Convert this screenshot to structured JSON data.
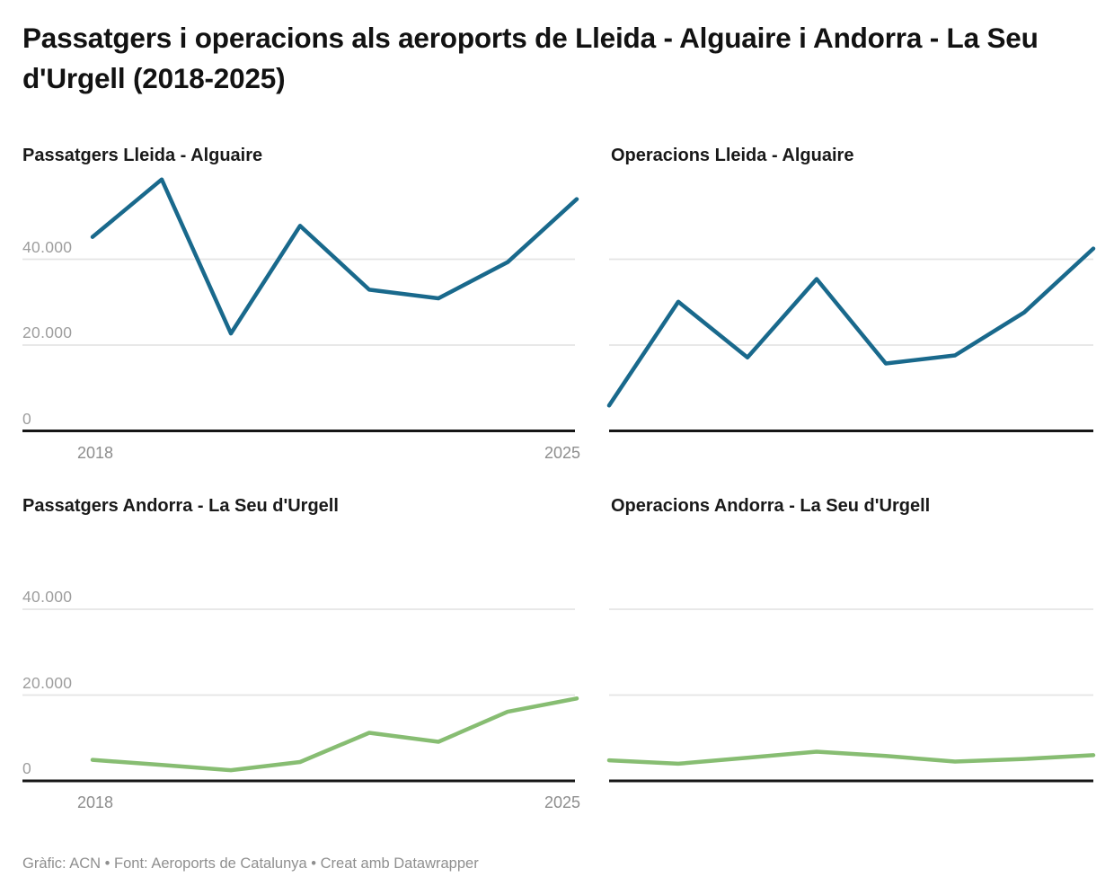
{
  "header": {
    "title": "Passatgers i operacions als aeroports de Lleida - Alguaire i Andorra - La Seu d'Urgell (2018-2025)"
  },
  "axis": {
    "x_first_label": "2018",
    "x_last_label": "2025",
    "y_ticks": [
      "40.000",
      "20.000",
      "0"
    ]
  },
  "footer": {
    "text": "Gràfic: ACN • Font: Aeroports de Catalunya • Creat amb Datawrapper"
  },
  "colors": {
    "teal": "#19698c",
    "green": "#87bd72",
    "gridline": "#e4e4e4",
    "baseline": "#161616",
    "tick_text": "#9d9d9d",
    "title_text": "#121212",
    "footer_text": "#8f8f8f",
    "background": "#ffffff"
  },
  "chart_data": [
    {
      "type": "line",
      "title": "Passatgers Lleida - Alguaire",
      "color": "teal",
      "x": [
        2018,
        2019,
        2020,
        2021,
        2022,
        2023,
        2024,
        2025
      ],
      "values": [
        45200,
        58600,
        22700,
        47800,
        32900,
        30900,
        39300,
        54000
      ],
      "ylim": [
        0,
        60000
      ],
      "y_gridlines": [
        20000,
        40000
      ],
      "y_axis_labels": [
        "40.000",
        "20.000",
        "0"
      ],
      "x_axis_labels": [
        "2018",
        "2025"
      ],
      "grid": "on",
      "legend": "none"
    },
    {
      "type": "line",
      "title": "Operacions Lleida - Alguaire",
      "color": "teal",
      "x": [
        2018,
        2019,
        2020,
        2021,
        2022,
        2023,
        2024,
        2025
      ],
      "values": [
        5900,
        30100,
        17100,
        35400,
        15700,
        17600,
        27600,
        42500
      ],
      "ylim": [
        0,
        60000
      ],
      "y_gridlines": [
        20000,
        40000
      ],
      "y_axis_labels": [],
      "x_axis_labels": [],
      "grid": "on",
      "legend": "none"
    },
    {
      "type": "line",
      "title": "Passatgers Andorra - La Seu d'Urgell",
      "color": "green",
      "x": [
        2018,
        2019,
        2020,
        2021,
        2022,
        2023,
        2024,
        2025
      ],
      "values": [
        4900,
        3700,
        2500,
        4400,
        11200,
        9100,
        16100,
        19200
      ],
      "ylim": [
        0,
        60000
      ],
      "y_gridlines": [
        20000,
        40000
      ],
      "y_axis_labels": [
        "40.000",
        "20.000",
        "0"
      ],
      "x_axis_labels": [
        "2018",
        "2025"
      ],
      "grid": "on",
      "legend": "none"
    },
    {
      "type": "line",
      "title": "Operacions Andorra - La Seu d'Urgell",
      "color": "green",
      "x": [
        2018,
        2019,
        2020,
        2021,
        2022,
        2023,
        2024,
        2025
      ],
      "values": [
        4800,
        4000,
        5400,
        6800,
        5800,
        4500,
        5100,
        6000
      ],
      "ylim": [
        0,
        60000
      ],
      "y_gridlines": [
        20000,
        40000
      ],
      "y_axis_labels": [],
      "x_axis_labels": [],
      "grid": "on",
      "legend": "none"
    }
  ]
}
